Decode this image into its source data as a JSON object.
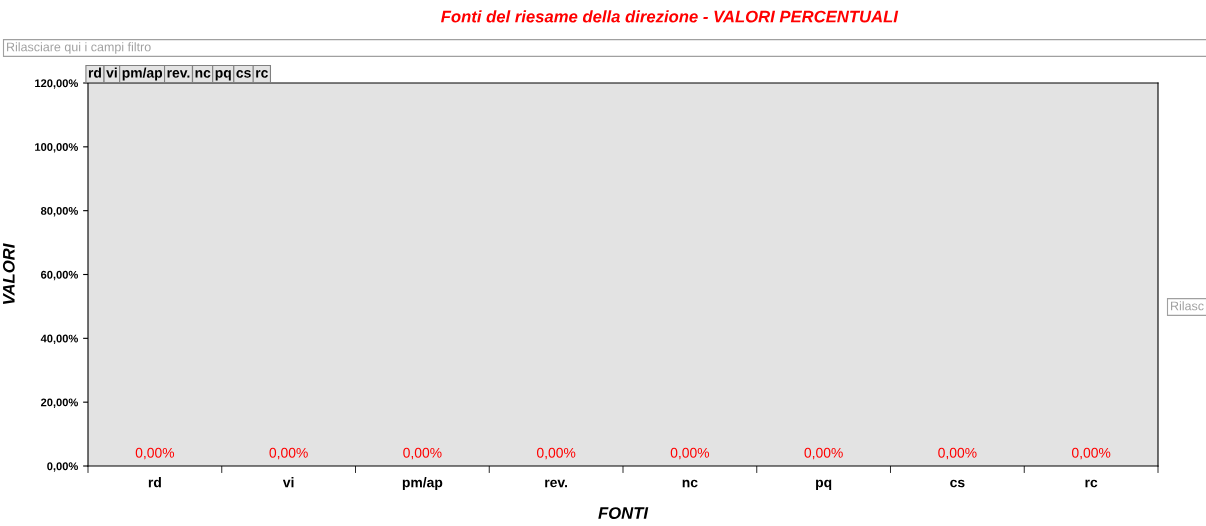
{
  "chart_data": {
    "type": "bar",
    "title": "Fonti del riesame della direzione - VALORI PERCENTUALI",
    "xlabel": "FONTI",
    "ylabel": "VALORI",
    "categories": [
      "rd",
      "vi",
      "pm/ap",
      "rev.",
      "nc",
      "pq",
      "cs",
      "rc"
    ],
    "values": [
      0,
      0,
      0,
      0,
      0,
      0,
      0,
      0
    ],
    "value_labels": [
      "0,00%",
      "0,00%",
      "0,00%",
      "0,00%",
      "0,00%",
      "0,00%",
      "0,00%",
      "0,00%"
    ],
    "ylim": [
      0,
      120
    ],
    "yticks": [
      {
        "value": 0,
        "label": "0,00%"
      },
      {
        "value": 20,
        "label": "20,00%"
      },
      {
        "value": 40,
        "label": "40,00%"
      },
      {
        "value": 60,
        "label": "60,00%"
      },
      {
        "value": 80,
        "label": "80,00%"
      },
      {
        "value": 100,
        "label": "100,00%"
      },
      {
        "value": 120,
        "label": "120,00%"
      }
    ],
    "grid": false,
    "legend": false,
    "annotations": [
      "Rilasciare qui i campi filtro",
      "Rilasc"
    ]
  }
}
